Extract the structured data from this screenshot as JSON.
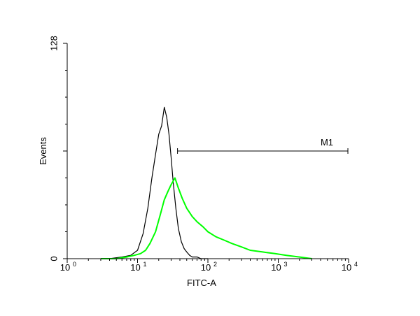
{
  "chart_data": {
    "type": "line",
    "title": "",
    "xlabel": "FITC-A",
    "ylabel": "Events",
    "x_scale": "log",
    "xlim": [
      1,
      10000
    ],
    "ylim": [
      0,
      128
    ],
    "x_ticks": [
      {
        "base": "10",
        "exp": "0",
        "value": 1
      },
      {
        "base": "10",
        "exp": "1",
        "value": 10
      },
      {
        "base": "10",
        "exp": "2",
        "value": 100
      },
      {
        "base": "10",
        "exp": "3",
        "value": 1000
      },
      {
        "base": "10",
        "exp": "4",
        "value": 10000
      }
    ],
    "y_ticks": [
      {
        "label": "0",
        "value": 0
      },
      {
        "label": "128",
        "value": 128
      }
    ],
    "grid": false,
    "legend": "none",
    "marker": {
      "label": "M1",
      "x_start": 37,
      "x_end": 10000,
      "y": 64
    },
    "series": [
      {
        "color": "#000000",
        "x": [
          4,
          6,
          8,
          10,
          12,
          14,
          16,
          18,
          20,
          22,
          24,
          26,
          28,
          30,
          32,
          35,
          38,
          42,
          46,
          50,
          55,
          60,
          70,
          80,
          100
        ],
        "values": [
          0,
          1,
          2,
          5,
          15,
          30,
          48,
          62,
          74,
          79,
          90,
          84,
          74,
          60,
          46,
          30,
          18,
          10,
          6,
          4,
          2,
          1,
          1,
          0,
          0
        ]
      },
      {
        "color": "#00ff00",
        "x": [
          3,
          5,
          7,
          9,
          11,
          13,
          15,
          18,
          21,
          24,
          27,
          30,
          34,
          38,
          43,
          50,
          60,
          70,
          85,
          100,
          130,
          170,
          220,
          300,
          400,
          600,
          900,
          1300,
          2000,
          3000
        ],
        "values": [
          0,
          0,
          1,
          2,
          3,
          5,
          9,
          16,
          26,
          35,
          40,
          44,
          48,
          42,
          36,
          30,
          25,
          22,
          19,
          16,
          13,
          11,
          9,
          7,
          5,
          4,
          3,
          2,
          1,
          0
        ]
      }
    ]
  }
}
